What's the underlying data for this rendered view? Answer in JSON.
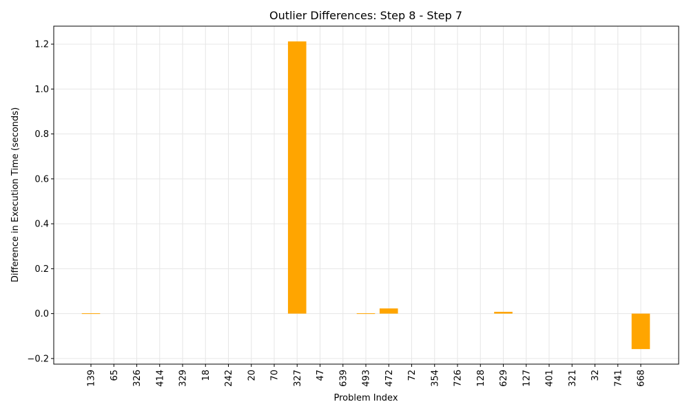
{
  "chart_data": {
    "type": "bar",
    "title": "Outlier Differences: Step 8 - Step 7",
    "xlabel": "Problem Index",
    "ylabel": "Difference in Execution Time (seconds)",
    "categories": [
      "139",
      "65",
      "326",
      "414",
      "329",
      "18",
      "242",
      "20",
      "70",
      "327",
      "47",
      "639",
      "493",
      "472",
      "72",
      "354",
      "726",
      "128",
      "629",
      "127",
      "401",
      "321",
      "32",
      "741",
      "668"
    ],
    "values": [
      -0.002,
      0,
      0,
      0,
      0,
      0,
      0,
      0,
      0,
      1.212,
      0,
      0,
      -0.003,
      0.023,
      0,
      0,
      0,
      0,
      0.008,
      0,
      0,
      0,
      0,
      0,
      -0.158
    ],
    "ylim": [
      -0.225,
      1.28
    ],
    "yticks": [
      -0.2,
      0.0,
      0.2,
      0.4,
      0.6,
      0.8,
      1.0,
      1.2
    ],
    "ytick_labels": [
      "−0.2",
      "0.0",
      "0.2",
      "0.4",
      "0.6",
      "0.8",
      "1.0",
      "1.2"
    ],
    "grid": true,
    "bar_color": "#FFA500",
    "grid_color": "#e6e6e6"
  }
}
